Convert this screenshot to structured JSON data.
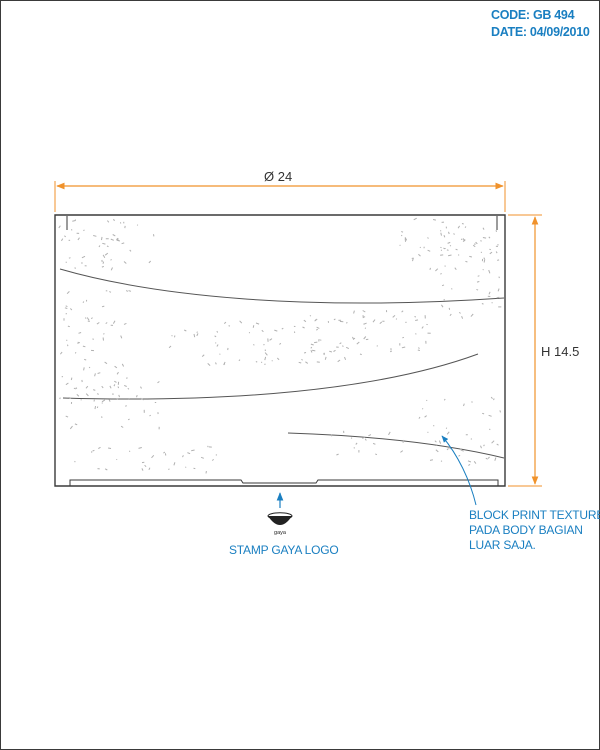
{
  "header": {
    "code": "CODE: GB 494",
    "date": "DATE: 04/09/2010"
  },
  "dimensions": {
    "diameter": "Ø 24",
    "height": "H 14.5"
  },
  "notes": {
    "texture_lines": [
      "BLOCK PRINT TEXTURE",
      "PADA BODY BAGIAN",
      "LUAR SAJA."
    ],
    "logo_caption": "STAMP GAYA LOGO",
    "logo_text": "gaya"
  },
  "colors": {
    "annotation": "#1a7fc1",
    "dimension": "#f0922b",
    "outline": "#3a3a3a",
    "texture": "#b0b0b0"
  }
}
